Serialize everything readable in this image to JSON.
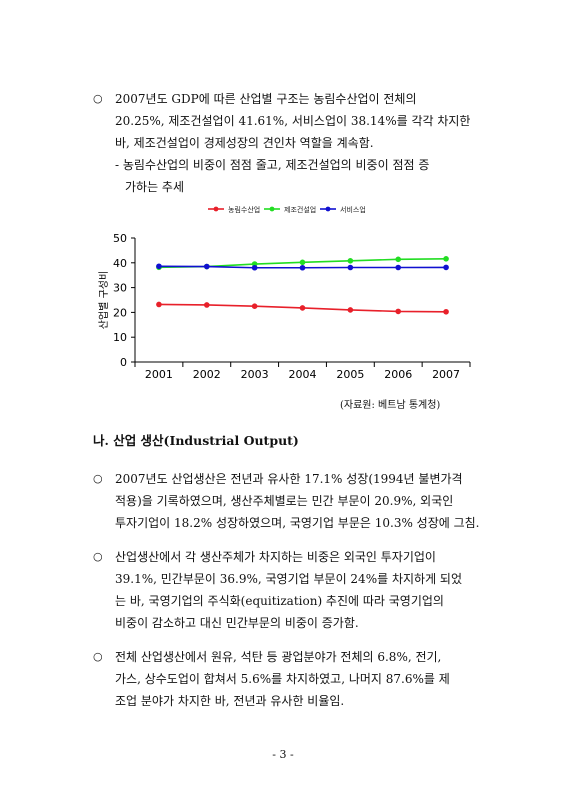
{
  "bullet_symbol": "○",
  "intro": {
    "lines": [
      "2007년도 GDP에 따른 산업별 구조는 농림수산업이 전체의",
      "20.25%, 제조건설업이 41.61%, 서비스업이 38.14%를 각각 차지한",
      "바, 제조건설업이 경제성장의 견인차 역할을 계속함."
    ],
    "sub_lines": [
      "- 농림수산업의 비중이 점점 줄고, 제조건설업의 비중이 점점 증",
      "가하는 추세"
    ]
  },
  "chart_data": {
    "type": "line",
    "x": [
      "2001",
      "2002",
      "2003",
      "2004",
      "2005",
      "2006",
      "2007"
    ],
    "series": [
      {
        "name": "농림수산업",
        "color": "#e8202a",
        "values": [
          23.2,
          23.0,
          22.5,
          21.8,
          21.0,
          20.4,
          20.25
        ]
      },
      {
        "name": "제조건설업",
        "color": "#22dd22",
        "values": [
          38.2,
          38.5,
          39.5,
          40.2,
          40.8,
          41.4,
          41.61
        ]
      },
      {
        "name": "서비스업",
        "color": "#1010d0",
        "values": [
          38.6,
          38.5,
          38.0,
          38.0,
          38.1,
          38.1,
          38.14
        ]
      }
    ],
    "ylabel": "산업별 구성비",
    "yticks": [
      "0",
      "10",
      "20",
      "30",
      "40",
      "50"
    ],
    "ylim": [
      0,
      50
    ],
    "legend_position": "top"
  },
  "source": "(자료원: 베트남 통계청)",
  "section_heading": "나. 산업 생산(Industrial Output)",
  "paragraphs": [
    [
      "2007년도 산업생산은 전년과 유사한 17.1% 성장(1994년 불변가격",
      "적용)을 기록하였으며, 생산주체별로는 민간 부문이 20.9%, 외국인",
      "투자기업이 18.2% 성장하였으며, 국영기업 부문은 10.3% 성장에 그침."
    ],
    [
      "산업생산에서 각 생산주체가 차지하는 비중은 외국인 투자기업이",
      "39.1%, 민간부문이 36.9%, 국영기업 부문이 24%를 차지하게 되었",
      "는 바, 국영기업의 주식화(equitization) 추진에 따라 국영기업의",
      "비중이 감소하고 대신 민간부문의 비중이 증가함."
    ],
    [
      "전체 산업생산에서 원유, 석탄 등 광업분야가 전체의 6.8%, 전기,",
      "가스, 상수도업이 합쳐서 5.6%를 차지하였고, 나머지 87.6%를 제",
      "조업 분야가 차지한 바, 전년과 유사한 비율임."
    ]
  ],
  "page_number": "- 3 -"
}
